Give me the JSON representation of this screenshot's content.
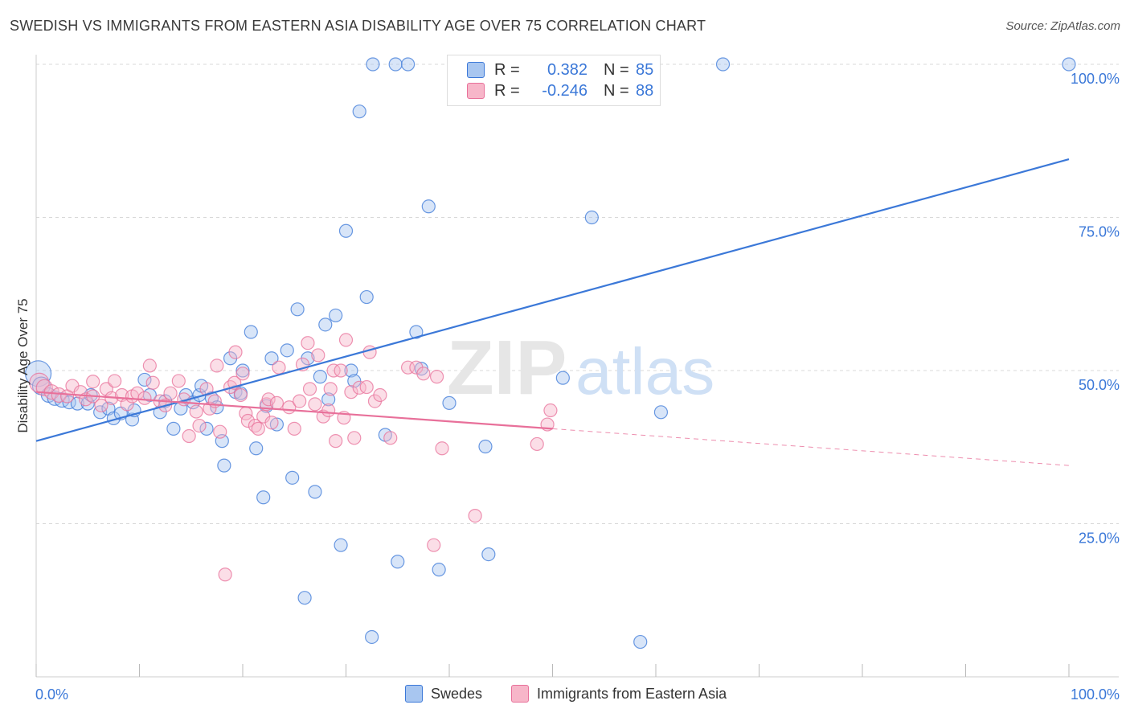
{
  "title": "SWEDISH VS IMMIGRANTS FROM EASTERN ASIA DISABILITY AGE OVER 75 CORRELATION CHART",
  "source": "Source: ZipAtlas.com",
  "watermark": {
    "zip": "ZIP",
    "atlas": "atlas"
  },
  "legend": {
    "r_label": "R =",
    "n_label": "N =",
    "rows": [
      {
        "r": "0.382",
        "n": "85",
        "color": "#a8c6f0"
      },
      {
        "r": "-0.246",
        "n": "88",
        "color": "#f7b6c9"
      }
    ]
  },
  "colors": {
    "blue": "#3b78d8",
    "blue_fill": "#a8c6f0",
    "pink": "#e8709a",
    "pink_fill": "#f7b6c9",
    "grid": "#d8d8d8",
    "axis_text": "#3b78d8"
  },
  "chart_data": {
    "type": "scatter",
    "ylabel": "Disability Age Over 75",
    "xlim": [
      0,
      100
    ],
    "ylim": [
      0,
      102
    ],
    "x_tick_labels": {
      "min": "0.0%",
      "max": "100.0%"
    },
    "y_ticks": [
      {
        "value": 25,
        "label": "25.0%"
      },
      {
        "value": 50,
        "label": "50.0%"
      },
      {
        "value": 75,
        "label": "75.0%"
      },
      {
        "value": 100,
        "label": "100.0%"
      }
    ],
    "grid": true,
    "series": [
      {
        "name": "Swedes",
        "color": "#3b78d8",
        "fill": "#a8c6f0",
        "trend": {
          "x": [
            0,
            100
          ],
          "y": [
            38.5,
            84.5
          ],
          "dashed_from": null
        },
        "points": [
          {
            "x": 0.2,
            "y": 49.5,
            "r": 16
          },
          {
            "x": 0.5,
            "y": 47.5,
            "r": 11
          },
          {
            "x": 1.2,
            "y": 46.0,
            "r": 9
          },
          {
            "x": 1.8,
            "y": 45.5,
            "r": 9
          },
          {
            "x": 2.5,
            "y": 45.2,
            "r": 9
          },
          {
            "x": 3.2,
            "y": 44.8,
            "r": 8
          },
          {
            "x": 4.0,
            "y": 44.6,
            "r": 8
          },
          {
            "x": 5.0,
            "y": 44.6,
            "r": 8
          },
          {
            "x": 5.3,
            "y": 46.0,
            "r": 8
          },
          {
            "x": 6.2,
            "y": 43.2,
            "r": 8
          },
          {
            "x": 7.0,
            "y": 43.8,
            "r": 8
          },
          {
            "x": 7.5,
            "y": 42.2,
            "r": 8
          },
          {
            "x": 8.2,
            "y": 43.0,
            "r": 8
          },
          {
            "x": 9.3,
            "y": 42.0,
            "r": 8
          },
          {
            "x": 9.5,
            "y": 43.5,
            "r": 8
          },
          {
            "x": 10.5,
            "y": 48.5,
            "r": 8
          },
          {
            "x": 11.0,
            "y": 46.0,
            "r": 8
          },
          {
            "x": 12.0,
            "y": 43.2,
            "r": 8
          },
          {
            "x": 12.5,
            "y": 45.0,
            "r": 8
          },
          {
            "x": 13.3,
            "y": 40.5,
            "r": 8
          },
          {
            "x": 14.0,
            "y": 43.8,
            "r": 8
          },
          {
            "x": 14.5,
            "y": 46.0,
            "r": 8
          },
          {
            "x": 15.2,
            "y": 44.8,
            "r": 8
          },
          {
            "x": 15.8,
            "y": 46.0,
            "r": 8
          },
          {
            "x": 16.0,
            "y": 47.5,
            "r": 8
          },
          {
            "x": 16.5,
            "y": 40.5,
            "r": 8
          },
          {
            "x": 17.0,
            "y": 45.5,
            "r": 8
          },
          {
            "x": 17.5,
            "y": 44.0,
            "r": 8
          },
          {
            "x": 18.0,
            "y": 38.5,
            "r": 8
          },
          {
            "x": 18.2,
            "y": 34.5,
            "r": 8
          },
          {
            "x": 18.8,
            "y": 52.0,
            "r": 8
          },
          {
            "x": 19.3,
            "y": 46.5,
            "r": 8
          },
          {
            "x": 19.8,
            "y": 46.3,
            "r": 8
          },
          {
            "x": 20.0,
            "y": 50.0,
            "r": 8
          },
          {
            "x": 20.8,
            "y": 56.3,
            "r": 8
          },
          {
            "x": 21.3,
            "y": 37.3,
            "r": 8
          },
          {
            "x": 22.0,
            "y": 29.3,
            "r": 8
          },
          {
            "x": 22.3,
            "y": 44.2,
            "r": 8
          },
          {
            "x": 22.8,
            "y": 52.0,
            "r": 8
          },
          {
            "x": 23.3,
            "y": 41.2,
            "r": 8
          },
          {
            "x": 24.3,
            "y": 53.3,
            "r": 8
          },
          {
            "x": 24.8,
            "y": 32.5,
            "r": 8
          },
          {
            "x": 25.3,
            "y": 60.0,
            "r": 8
          },
          {
            "x": 26.0,
            "y": 12.9,
            "r": 8
          },
          {
            "x": 26.3,
            "y": 52.0,
            "r": 8
          },
          {
            "x": 27.0,
            "y": 30.2,
            "r": 8
          },
          {
            "x": 27.5,
            "y": 49.0,
            "r": 8
          },
          {
            "x": 28.0,
            "y": 57.5,
            "r": 8
          },
          {
            "x": 28.3,
            "y": 45.3,
            "r": 8
          },
          {
            "x": 29.0,
            "y": 59.0,
            "r": 8
          },
          {
            "x": 29.5,
            "y": 21.5,
            "r": 8
          },
          {
            "x": 30.0,
            "y": 72.8,
            "r": 8
          },
          {
            "x": 30.5,
            "y": 50.0,
            "r": 8
          },
          {
            "x": 30.8,
            "y": 48.3,
            "r": 8
          },
          {
            "x": 31.3,
            "y": 92.3,
            "r": 8
          },
          {
            "x": 32.0,
            "y": 62.0,
            "r": 8
          },
          {
            "x": 32.5,
            "y": 6.5,
            "r": 8
          },
          {
            "x": 32.6,
            "y": 100.0,
            "r": 8
          },
          {
            "x": 33.8,
            "y": 39.5,
            "r": 8
          },
          {
            "x": 34.8,
            "y": 100.0,
            "r": 8
          },
          {
            "x": 35.0,
            "y": 18.8,
            "r": 8
          },
          {
            "x": 36.0,
            "y": 100.0,
            "r": 8
          },
          {
            "x": 36.8,
            "y": 56.3,
            "r": 8
          },
          {
            "x": 37.3,
            "y": 50.3,
            "r": 8
          },
          {
            "x": 38.0,
            "y": 76.8,
            "r": 8
          },
          {
            "x": 39.0,
            "y": 17.5,
            "r": 8
          },
          {
            "x": 40.0,
            "y": 44.7,
            "r": 8
          },
          {
            "x": 43.5,
            "y": 37.6,
            "r": 8
          },
          {
            "x": 43.8,
            "y": 20.0,
            "r": 8
          },
          {
            "x": 50.0,
            "y": 100.0,
            "r": 8
          },
          {
            "x": 51.0,
            "y": 48.8,
            "r": 8
          },
          {
            "x": 53.8,
            "y": 75.0,
            "r": 8
          },
          {
            "x": 54.0,
            "y": 100.0,
            "r": 8
          },
          {
            "x": 58.5,
            "y": 5.7,
            "r": 8
          },
          {
            "x": 60.5,
            "y": 43.2,
            "r": 8
          },
          {
            "x": 66.5,
            "y": 100.0,
            "r": 8
          },
          {
            "x": 100.0,
            "y": 100.0,
            "r": 8
          }
        ]
      },
      {
        "name": "Immigrants from Eastern Asia",
        "color": "#e8709a",
        "fill": "#f7b6c9",
        "trend": {
          "x": [
            0,
            100
          ],
          "y": [
            46.5,
            34.5
          ],
          "dashed_from": 50
        },
        "points": [
          {
            "x": 0.3,
            "y": 48.0,
            "r": 12
          },
          {
            "x": 0.8,
            "y": 47.2,
            "r": 10
          },
          {
            "x": 1.5,
            "y": 46.5,
            "r": 9
          },
          {
            "x": 2.2,
            "y": 46.0,
            "r": 9
          },
          {
            "x": 3.0,
            "y": 45.8,
            "r": 8
          },
          {
            "x": 3.5,
            "y": 47.5,
            "r": 8
          },
          {
            "x": 4.3,
            "y": 46.5,
            "r": 8
          },
          {
            "x": 4.8,
            "y": 45.3,
            "r": 8
          },
          {
            "x": 5.5,
            "y": 45.8,
            "r": 8
          },
          {
            "x": 5.5,
            "y": 48.2,
            "r": 8
          },
          {
            "x": 6.3,
            "y": 44.3,
            "r": 8
          },
          {
            "x": 6.8,
            "y": 47.0,
            "r": 8
          },
          {
            "x": 7.3,
            "y": 45.5,
            "r": 8
          },
          {
            "x": 7.6,
            "y": 48.3,
            "r": 8
          },
          {
            "x": 8.3,
            "y": 46.0,
            "r": 8
          },
          {
            "x": 8.8,
            "y": 44.5,
            "r": 8
          },
          {
            "x": 9.3,
            "y": 45.8,
            "r": 8
          },
          {
            "x": 9.8,
            "y": 46.3,
            "r": 8
          },
          {
            "x": 10.5,
            "y": 45.5,
            "r": 8
          },
          {
            "x": 11.0,
            "y": 50.8,
            "r": 8
          },
          {
            "x": 11.3,
            "y": 48.0,
            "r": 8
          },
          {
            "x": 12.0,
            "y": 45.0,
            "r": 8
          },
          {
            "x": 12.5,
            "y": 44.3,
            "r": 8
          },
          {
            "x": 13.0,
            "y": 46.3,
            "r": 8
          },
          {
            "x": 13.8,
            "y": 48.3,
            "r": 8
          },
          {
            "x": 14.3,
            "y": 45.3,
            "r": 8
          },
          {
            "x": 14.8,
            "y": 39.3,
            "r": 8
          },
          {
            "x": 15.5,
            "y": 43.3,
            "r": 8
          },
          {
            "x": 15.8,
            "y": 41.0,
            "r": 8
          },
          {
            "x": 16.5,
            "y": 47.0,
            "r": 8
          },
          {
            "x": 16.8,
            "y": 43.8,
            "r": 8
          },
          {
            "x": 17.3,
            "y": 45.0,
            "r": 8
          },
          {
            "x": 17.5,
            "y": 50.8,
            "r": 8
          },
          {
            "x": 17.8,
            "y": 40.0,
            "r": 8
          },
          {
            "x": 18.3,
            "y": 16.7,
            "r": 8
          },
          {
            "x": 18.8,
            "y": 47.3,
            "r": 8
          },
          {
            "x": 19.2,
            "y": 48.0,
            "r": 8
          },
          {
            "x": 19.3,
            "y": 53.0,
            "r": 8
          },
          {
            "x": 19.8,
            "y": 46.0,
            "r": 8
          },
          {
            "x": 20.0,
            "y": 49.5,
            "r": 8
          },
          {
            "x": 20.3,
            "y": 43.0,
            "r": 8
          },
          {
            "x": 20.5,
            "y": 41.8,
            "r": 8
          },
          {
            "x": 21.2,
            "y": 41.0,
            "r": 8
          },
          {
            "x": 21.5,
            "y": 40.5,
            "r": 8
          },
          {
            "x": 22.0,
            "y": 42.5,
            "r": 8
          },
          {
            "x": 22.3,
            "y": 44.5,
            "r": 8
          },
          {
            "x": 22.5,
            "y": 45.3,
            "r": 8
          },
          {
            "x": 22.8,
            "y": 41.5,
            "r": 8
          },
          {
            "x": 23.3,
            "y": 44.7,
            "r": 8
          },
          {
            "x": 23.5,
            "y": 50.5,
            "r": 8
          },
          {
            "x": 24.5,
            "y": 44.0,
            "r": 8
          },
          {
            "x": 25.0,
            "y": 40.5,
            "r": 8
          },
          {
            "x": 25.5,
            "y": 45.0,
            "r": 8
          },
          {
            "x": 25.8,
            "y": 51.0,
            "r": 8
          },
          {
            "x": 26.3,
            "y": 54.5,
            "r": 8
          },
          {
            "x": 26.5,
            "y": 47.0,
            "r": 8
          },
          {
            "x": 27.0,
            "y": 44.5,
            "r": 8
          },
          {
            "x": 27.3,
            "y": 52.5,
            "r": 8
          },
          {
            "x": 27.8,
            "y": 42.5,
            "r": 8
          },
          {
            "x": 28.3,
            "y": 43.5,
            "r": 8
          },
          {
            "x": 28.5,
            "y": 47.0,
            "r": 8
          },
          {
            "x": 28.8,
            "y": 50.0,
            "r": 8
          },
          {
            "x": 29.0,
            "y": 38.5,
            "r": 8
          },
          {
            "x": 29.5,
            "y": 50.0,
            "r": 8
          },
          {
            "x": 29.8,
            "y": 42.3,
            "r": 8
          },
          {
            "x": 30.0,
            "y": 55.0,
            "r": 8
          },
          {
            "x": 30.5,
            "y": 46.5,
            "r": 8
          },
          {
            "x": 30.8,
            "y": 39.0,
            "r": 8
          },
          {
            "x": 31.3,
            "y": 47.2,
            "r": 8
          },
          {
            "x": 32.0,
            "y": 47.3,
            "r": 8
          },
          {
            "x": 32.3,
            "y": 53.0,
            "r": 8
          },
          {
            "x": 32.8,
            "y": 45.0,
            "r": 8
          },
          {
            "x": 33.3,
            "y": 46.0,
            "r": 8
          },
          {
            "x": 34.3,
            "y": 39.0,
            "r": 8
          },
          {
            "x": 36.0,
            "y": 50.5,
            "r": 8
          },
          {
            "x": 36.8,
            "y": 50.5,
            "r": 8
          },
          {
            "x": 37.5,
            "y": 49.5,
            "r": 8
          },
          {
            "x": 38.5,
            "y": 21.5,
            "r": 8
          },
          {
            "x": 38.8,
            "y": 49.0,
            "r": 8
          },
          {
            "x": 39.3,
            "y": 37.3,
            "r": 8
          },
          {
            "x": 42.5,
            "y": 26.3,
            "r": 8
          },
          {
            "x": 48.5,
            "y": 38.0,
            "r": 8
          },
          {
            "x": 49.5,
            "y": 41.2,
            "r": 8
          },
          {
            "x": 49.8,
            "y": 43.5,
            "r": 8
          }
        ]
      }
    ]
  }
}
